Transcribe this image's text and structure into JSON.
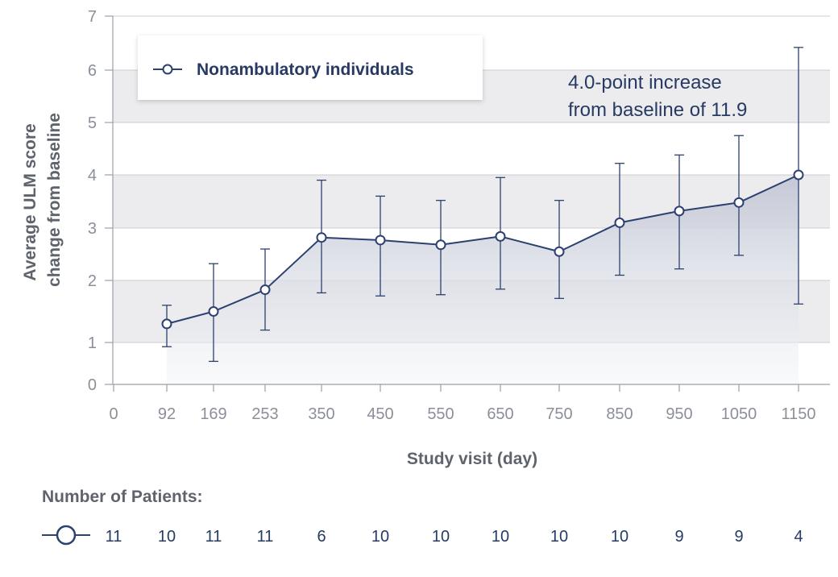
{
  "chart_data": {
    "type": "line",
    "title": "",
    "xlabel": "Study visit (day)",
    "ylabel": [
      "Average ULM score",
      "change from baseline"
    ],
    "ylim": [
      0,
      7
    ],
    "yticks": [
      "0",
      "1",
      "2",
      "3",
      "4",
      "5",
      "6",
      "7"
    ],
    "xticks": [
      "0",
      "92",
      "169",
      "253",
      "350",
      "450",
      "550",
      "650",
      "750",
      "850",
      "950",
      "1050",
      "1150"
    ],
    "grid": true,
    "legend": {
      "position": "top-left",
      "entries": [
        "Nonambulatory individuals"
      ]
    },
    "series": [
      {
        "name": "Nonambulatory individuals",
        "color": "#2c4170",
        "x": [
          92,
          169,
          253,
          350,
          450,
          550,
          650,
          750,
          850,
          950,
          1050,
          1150
        ],
        "y": [
          1.3,
          1.5,
          1.85,
          2.82,
          2.77,
          2.68,
          2.84,
          2.55,
          3.1,
          3.32,
          3.48,
          4.0
        ],
        "err_low": [
          0.9,
          0.55,
          1.2,
          1.8,
          1.75,
          1.77,
          1.86,
          1.71,
          2.1,
          2.22,
          2.48,
          1.62
        ],
        "err_high": [
          1.6,
          2.32,
          2.6,
          3.9,
          3.6,
          3.52,
          3.95,
          3.52,
          4.22,
          4.38,
          4.75,
          6.42
        ]
      }
    ],
    "annotation": {
      "lines": [
        "4.0-point increase",
        "from baseline of 11.9"
      ]
    },
    "patients": {
      "title": "Number of Patients:",
      "counts": [
        "11",
        "10",
        "11",
        "11",
        "6",
        "10",
        "10",
        "10",
        "10",
        "10",
        "9",
        "9",
        "4"
      ]
    }
  },
  "colors": {
    "line": "#2c4170",
    "band": "#ececee",
    "grid": "#c9ccd3",
    "area_top": "#c6c9d6"
  }
}
